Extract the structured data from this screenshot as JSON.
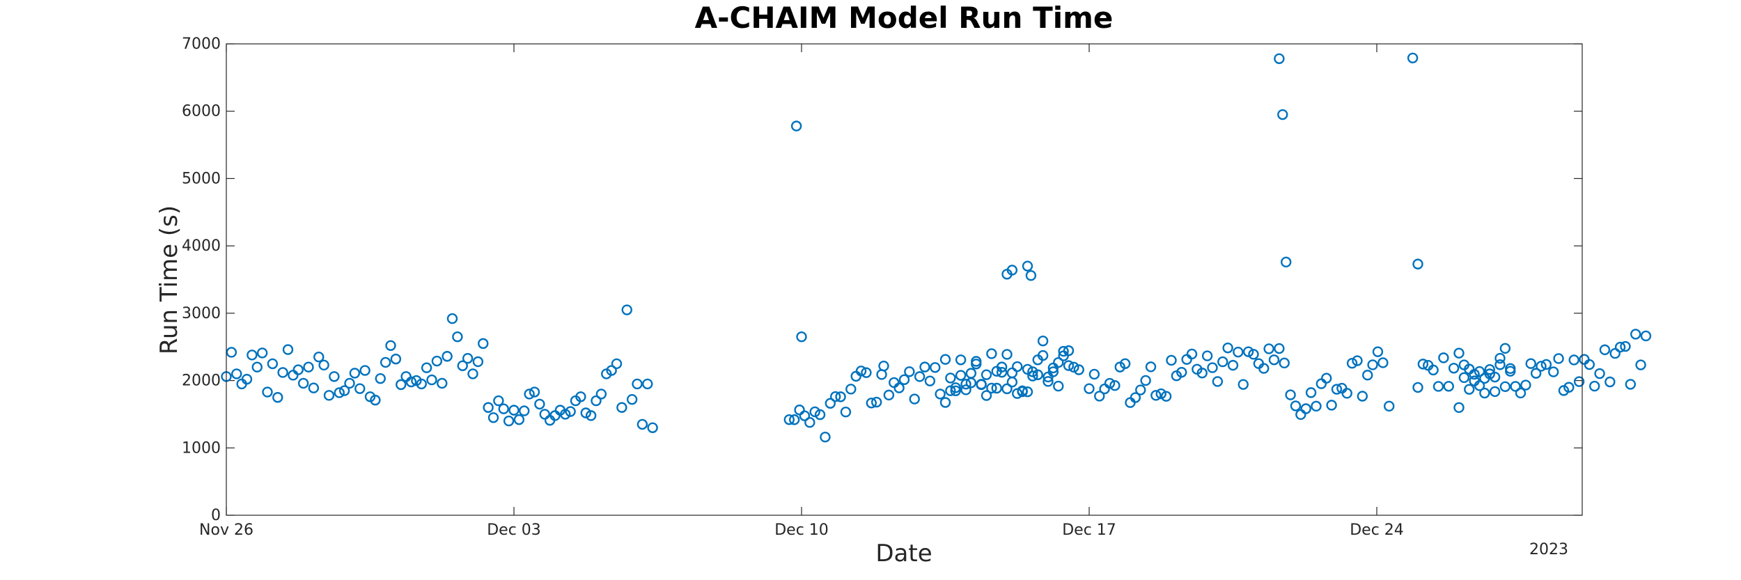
{
  "chart_data": {
    "type": "scatter",
    "title": "A-CHAIM Model Run Time",
    "xlabel": "Date",
    "ylabel": "Run Time (s)",
    "x_unit": "date",
    "x_year_label": "2023",
    "xlim": [
      "2022-11-26",
      "2022-12-29"
    ],
    "ylim": [
      0,
      7000
    ],
    "x_ticks": [
      {
        "value": "2022-11-26",
        "label": "Nov 26"
      },
      {
        "value": "2022-12-03",
        "label": "Dec 03"
      },
      {
        "value": "2022-12-10",
        "label": "Dec 10"
      },
      {
        "value": "2022-12-17",
        "label": "Dec 17"
      },
      {
        "value": "2022-12-24",
        "label": "Dec 24"
      }
    ],
    "y_ticks": [
      0,
      1000,
      2000,
      3000,
      4000,
      5000,
      6000,
      7000
    ],
    "grid": false,
    "marker_color": "#0072BD",
    "series": [
      {
        "marker": "circle",
        "points": [
          [
            "2022-11-26 00:00",
            2060
          ],
          [
            "2022-11-26 03:00",
            2420
          ],
          [
            "2022-11-26 06:00",
            2100
          ],
          [
            "2022-11-26 09:00",
            1950
          ],
          [
            "2022-11-26 12:00",
            2020
          ],
          [
            "2022-11-26 15:00",
            2380
          ],
          [
            "2022-11-26 18:00",
            2200
          ],
          [
            "2022-11-26 21:00",
            2410
          ],
          [
            "2022-11-27 00:00",
            1830
          ],
          [
            "2022-11-27 03:00",
            2250
          ],
          [
            "2022-11-27 06:00",
            1750
          ],
          [
            "2022-11-27 09:00",
            2120
          ],
          [
            "2022-11-27 12:00",
            2460
          ],
          [
            "2022-11-27 15:00",
            2080
          ],
          [
            "2022-11-27 18:00",
            2160
          ],
          [
            "2022-11-27 21:00",
            1960
          ],
          [
            "2022-11-28 00:00",
            2200
          ],
          [
            "2022-11-28 03:00",
            1890
          ],
          [
            "2022-11-28 06:00",
            2350
          ],
          [
            "2022-11-28 09:00",
            2230
          ],
          [
            "2022-11-28 12:00",
            1780
          ],
          [
            "2022-11-28 15:00",
            2060
          ],
          [
            "2022-11-28 18:00",
            1820
          ],
          [
            "2022-11-28 21:00",
            1850
          ],
          [
            "2022-11-29 00:00",
            1960
          ],
          [
            "2022-11-29 03:00",
            2110
          ],
          [
            "2022-11-29 06:00",
            1880
          ],
          [
            "2022-11-29 09:00",
            2150
          ],
          [
            "2022-11-29 12:00",
            1760
          ],
          [
            "2022-11-29 15:00",
            1710
          ],
          [
            "2022-11-29 18:00",
            2030
          ],
          [
            "2022-11-29 21:00",
            2270
          ],
          [
            "2022-11-30 00:00",
            2520
          ],
          [
            "2022-11-30 03:00",
            2320
          ],
          [
            "2022-11-30 06:00",
            1940
          ],
          [
            "2022-11-30 09:00",
            2060
          ],
          [
            "2022-11-30 12:00",
            1980
          ],
          [
            "2022-11-30 15:00",
            2000
          ],
          [
            "2022-11-30 18:00",
            1950
          ],
          [
            "2022-11-30 21:00",
            2190
          ],
          [
            "2022-12-01 00:00",
            2010
          ],
          [
            "2022-12-01 03:00",
            2290
          ],
          [
            "2022-12-01 06:00",
            1960
          ],
          [
            "2022-12-01 09:00",
            2360
          ],
          [
            "2022-12-01 12:00",
            2920
          ],
          [
            "2022-12-01 15:00",
            2650
          ],
          [
            "2022-12-01 18:00",
            2220
          ],
          [
            "2022-12-01 21:00",
            2330
          ],
          [
            "2022-12-02 00:00",
            2100
          ],
          [
            "2022-12-02 03:00",
            2280
          ],
          [
            "2022-12-02 06:00",
            2550
          ],
          [
            "2022-12-02 09:00",
            1600
          ],
          [
            "2022-12-02 12:00",
            1450
          ],
          [
            "2022-12-02 15:00",
            1700
          ],
          [
            "2022-12-02 18:00",
            1580
          ],
          [
            "2022-12-02 21:00",
            1400
          ],
          [
            "2022-12-03 00:00",
            1560
          ],
          [
            "2022-12-03 03:00",
            1420
          ],
          [
            "2022-12-03 06:00",
            1550
          ],
          [
            "2022-12-03 09:00",
            1800
          ],
          [
            "2022-12-03 12:00",
            1830
          ],
          [
            "2022-12-03 15:00",
            1650
          ],
          [
            "2022-12-03 18:00",
            1500
          ],
          [
            "2022-12-03 21:00",
            1410
          ],
          [
            "2022-12-04 00:00",
            1480
          ],
          [
            "2022-12-04 03:00",
            1560
          ],
          [
            "2022-12-04 06:00",
            1500
          ],
          [
            "2022-12-04 09:00",
            1540
          ],
          [
            "2022-12-04 12:00",
            1700
          ],
          [
            "2022-12-04 15:00",
            1760
          ],
          [
            "2022-12-04 18:00",
            1520
          ],
          [
            "2022-12-04 21:00",
            1480
          ],
          [
            "2022-12-05 00:00",
            1700
          ],
          [
            "2022-12-05 03:00",
            1800
          ],
          [
            "2022-12-05 06:00",
            2100
          ],
          [
            "2022-12-05 09:00",
            2150
          ],
          [
            "2022-12-05 12:00",
            2250
          ],
          [
            "2022-12-05 15:00",
            1600
          ],
          [
            "2022-12-05 18:00",
            3050
          ],
          [
            "2022-12-05 21:00",
            1720
          ],
          [
            "2022-12-06 00:00",
            1950
          ],
          [
            "2022-12-06 03:00",
            1350
          ],
          [
            "2022-12-06 06:00",
            1950
          ],
          [
            "2022-12-06 09:00",
            1300
          ],
          [
            "2022-12-10 00:00",
            2650
          ],
          [
            "2022-12-09 21:00",
            5780
          ],
          [
            "2022-12-15 12:00",
            3700
          ],
          [
            "2022-12-15 14:00",
            3560
          ],
          [
            "2022-12-15 03:00",
            3640
          ],
          [
            "2022-12-15 00:00",
            3580
          ],
          [
            "2022-12-21 15:00",
            6780
          ],
          [
            "2022-12-21 17:00",
            5950
          ],
          [
            "2022-12-21 19:00",
            3760
          ],
          [
            "2022-12-24 21:00",
            6790
          ],
          [
            "2022-12-25 00:00",
            3730
          ]
        ]
      }
    ]
  }
}
